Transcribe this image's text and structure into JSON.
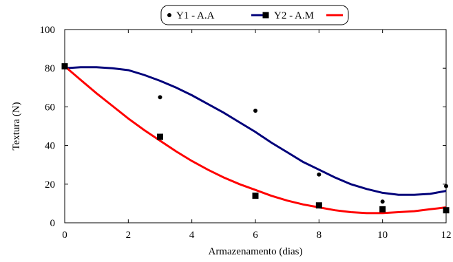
{
  "chart_data": {
    "type": "scatter",
    "xlabel": "Armazenamento (dias)",
    "ylabel": "Textura (N)",
    "xlim": [
      0,
      12
    ],
    "ylim": [
      0,
      100
    ],
    "x_ticks": [
      0,
      2,
      4,
      6,
      8,
      10,
      12
    ],
    "y_ticks": [
      0,
      20,
      40,
      60,
      80,
      100
    ],
    "grid": false,
    "legend_position": "top-center",
    "series": [
      {
        "name": "Y1 - A.A",
        "marker": "circle",
        "fit_color": "#00007a",
        "x": [
          0,
          3,
          6,
          8,
          10,
          12
        ],
        "y": [
          81,
          65,
          58,
          25,
          11,
          19
        ],
        "fit_curve": {
          "x": [
            0,
            0.5,
            1,
            1.5,
            2,
            2.5,
            3,
            3.5,
            4,
            4.5,
            5,
            5.5,
            6,
            6.5,
            7,
            7.5,
            8,
            8.5,
            9,
            9.5,
            10,
            10.5,
            11,
            11.5,
            12
          ],
          "y": [
            80,
            80.5,
            80.5,
            80,
            79,
            76.5,
            73.5,
            70,
            66,
            61.5,
            57,
            52,
            47,
            41.5,
            36.5,
            31.5,
            27.5,
            23.5,
            20,
            17.5,
            15.5,
            14.5,
            14.5,
            15,
            16.5
          ]
        }
      },
      {
        "name": "Y2 - A.M",
        "marker": "square",
        "fit_color": "#ff0000",
        "x": [
          0,
          3,
          6,
          8,
          10,
          12
        ],
        "y": [
          81,
          44.5,
          14,
          9,
          7,
          6.5
        ],
        "fit_curve": {
          "x": [
            0,
            0.5,
            1,
            1.5,
            2,
            2.5,
            3,
            3.5,
            4,
            4.5,
            5,
            5.5,
            6,
            6.5,
            7,
            7.5,
            8,
            8.5,
            9,
            9.5,
            10,
            10.5,
            11,
            11.5,
            12
          ],
          "y": [
            81,
            74,
            67,
            60.5,
            54,
            48,
            42.5,
            37,
            32,
            27.5,
            23.5,
            20,
            17,
            14,
            11.5,
            9.5,
            8,
            6.5,
            5.5,
            5,
            5,
            5.5,
            6,
            7,
            8
          ]
        }
      }
    ]
  }
}
